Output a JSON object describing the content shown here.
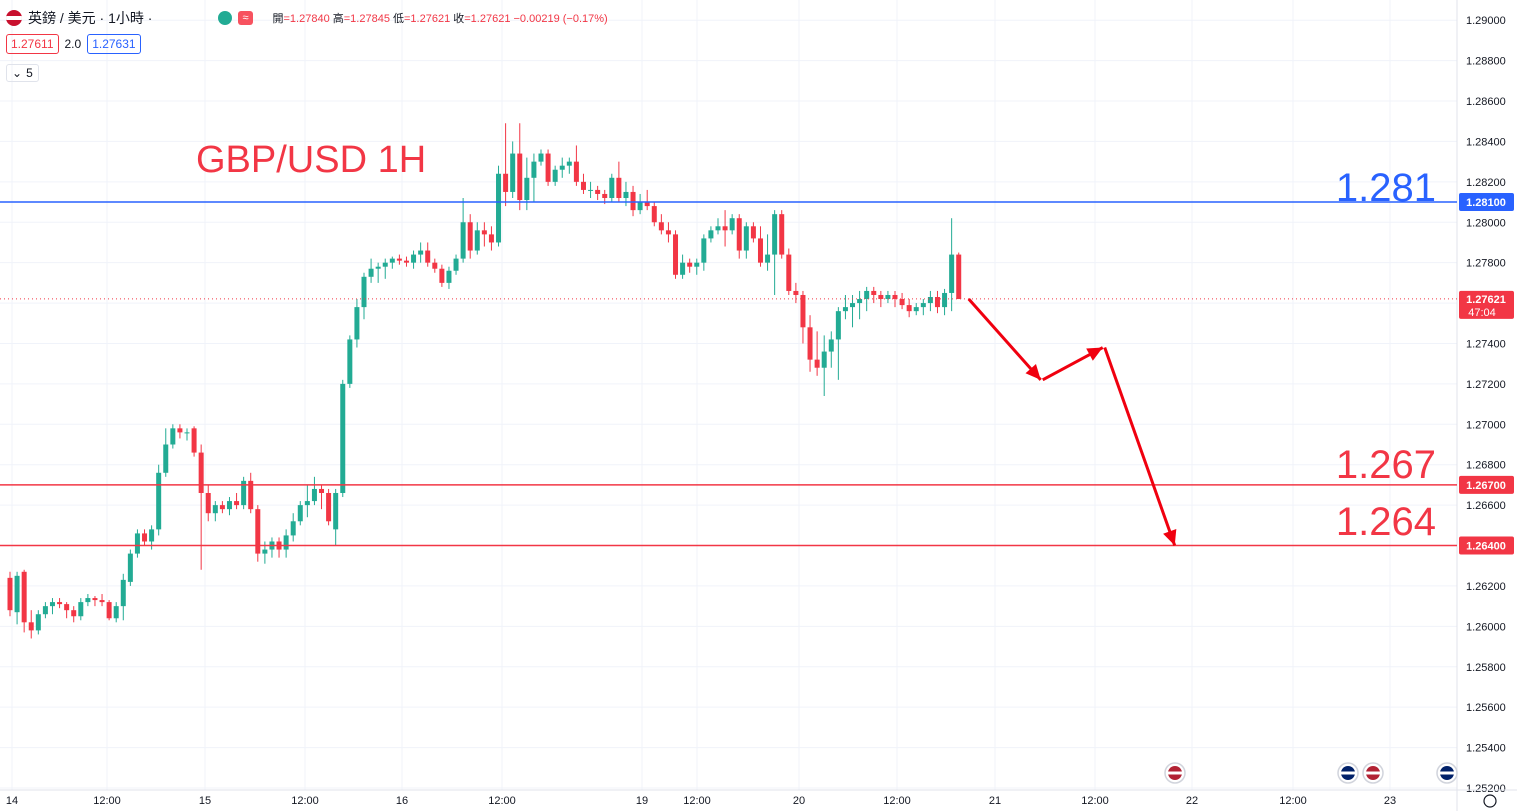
{
  "header": {
    "symbol": "英鎊 / 美元 · 1小時 ·",
    "ohlc_line": [
      {
        "label": "開",
        "value": "=1.27840"
      },
      {
        "label": "高",
        "value": "=1.27845"
      },
      {
        "label": "低",
        "value": "=1.27621"
      },
      {
        "label": "收",
        "value": "=1.27621"
      },
      {
        "label": "",
        "value": "−0.00219 (−0.17%)"
      }
    ],
    "badge": "≈",
    "sell_price": "1.27611",
    "spread": "2.0",
    "buy_price": "1.27631",
    "indicator_toggle": "5"
  },
  "annotations": {
    "title": "GBP/USD 1H",
    "level_high": "1.281",
    "level_mid": "1.267",
    "level_low": "1.264"
  },
  "colors": {
    "up": "#22ab94",
    "down": "#f23645",
    "resistance": "#2962ff",
    "support": "#f23645",
    "grid": "#f0f3fa"
  },
  "chart_data": {
    "type": "candlestick",
    "title": "GBP/USD 1H",
    "y_axis": {
      "range": [
        1.2519,
        1.291
      ],
      "ticks": [
        "1.29000",
        "1.28800",
        "1.28600",
        "1.28400",
        "1.28200",
        "1.28000",
        "1.27800",
        "1.27600",
        "1.27400",
        "1.27200",
        "1.27000",
        "1.26800",
        "1.26600",
        "1.26400",
        "1.26200",
        "1.26000",
        "1.25800",
        "1.25600",
        "1.25400",
        "1.25200"
      ]
    },
    "x_axis": {
      "ticks": [
        "14",
        "12:00",
        "15",
        "12:00",
        "16",
        "12:00",
        "19",
        "12:00",
        "20",
        "12:00",
        "21",
        "12:00",
        "22",
        "12:00",
        "23"
      ]
    },
    "horizontal_levels": [
      {
        "value": 1.281,
        "label": "1.28100",
        "color": "#2962ff"
      },
      {
        "value": 1.267,
        "label": "1.26700",
        "color": "#f23645"
      },
      {
        "value": 1.264,
        "label": "1.26400",
        "color": "#f23645"
      }
    ],
    "last_price": {
      "value": 1.27621,
      "label": "1.27621",
      "countdown": "47:04"
    },
    "projection_path": [
      {
        "bar": 0,
        "value": 1.2762
      },
      {
        "bar": 10,
        "value": 1.2722
      },
      {
        "bar": 10,
        "value": 1.2738
      },
      {
        "bar": 18,
        "value": 1.264
      }
    ],
    "candles": [
      [
        1.2624,
        1.2627,
        1.2605,
        1.2608
      ],
      [
        1.2607,
        1.2627,
        1.2601,
        1.2625
      ],
      [
        1.2627,
        1.2628,
        1.2597,
        1.2602
      ],
      [
        1.2602,
        1.2608,
        1.2594,
        1.2598
      ],
      [
        1.2598,
        1.2608,
        1.2596,
        1.2606
      ],
      [
        1.2606,
        1.2612,
        1.2604,
        1.261
      ],
      [
        1.261,
        1.2614,
        1.2606,
        1.2612
      ],
      [
        1.2612,
        1.2614,
        1.2609,
        1.2611
      ],
      [
        1.2611,
        1.2612,
        1.2604,
        1.2608
      ],
      [
        1.2608,
        1.261,
        1.2602,
        1.2605
      ],
      [
        1.2605,
        1.2614,
        1.2603,
        1.2612
      ],
      [
        1.2612,
        1.2616,
        1.261,
        1.2614
      ],
      [
        1.2614,
        1.2615,
        1.261,
        1.2613
      ],
      [
        1.2613,
        1.2616,
        1.261,
        1.2612
      ],
      [
        1.2612,
        1.2613,
        1.2603,
        1.2604
      ],
      [
        1.2604,
        1.2612,
        1.2602,
        1.261
      ],
      [
        1.261,
        1.2626,
        1.2603,
        1.2623
      ],
      [
        1.2622,
        1.2638,
        1.262,
        1.2636
      ],
      [
        1.2636,
        1.2648,
        1.2634,
        1.2646
      ],
      [
        1.2646,
        1.2648,
        1.264,
        1.2642
      ],
      [
        1.2642,
        1.265,
        1.2638,
        1.2648
      ],
      [
        1.2648,
        1.268,
        1.2645,
        1.2676
      ],
      [
        1.2676,
        1.2698,
        1.2674,
        1.269
      ],
      [
        1.269,
        1.27,
        1.2688,
        1.2698
      ],
      [
        1.2698,
        1.27,
        1.2693,
        1.2696
      ],
      [
        1.2696,
        1.2698,
        1.2692,
        1.2696
      ],
      [
        1.2698,
        1.2699,
        1.2684,
        1.2686
      ],
      [
        1.2686,
        1.269,
        1.2628,
        1.2666
      ],
      [
        1.2666,
        1.267,
        1.2652,
        1.2656
      ],
      [
        1.2656,
        1.2662,
        1.2652,
        1.266
      ],
      [
        1.266,
        1.2662,
        1.2656,
        1.2658
      ],
      [
        1.2658,
        1.2664,
        1.2655,
        1.2662
      ],
      [
        1.2662,
        1.2666,
        1.2658,
        1.266
      ],
      [
        1.266,
        1.2674,
        1.2658,
        1.2672
      ],
      [
        1.2672,
        1.2676,
        1.2656,
        1.2658
      ],
      [
        1.2658,
        1.266,
        1.2632,
        1.2636
      ],
      [
        1.2636,
        1.2642,
        1.2631,
        1.2638
      ],
      [
        1.2638,
        1.2644,
        1.2634,
        1.2642
      ],
      [
        1.2642,
        1.2644,
        1.2634,
        1.2638
      ],
      [
        1.2638,
        1.2648,
        1.2634,
        1.2645
      ],
      [
        1.2645,
        1.2656,
        1.2642,
        1.2652
      ],
      [
        1.2652,
        1.2662,
        1.265,
        1.266
      ],
      [
        1.266,
        1.267,
        1.2654,
        1.2662
      ],
      [
        1.2662,
        1.2674,
        1.266,
        1.2668
      ],
      [
        1.2668,
        1.267,
        1.2658,
        1.2666
      ],
      [
        1.2666,
        1.2668,
        1.265,
        1.2652
      ],
      [
        1.2648,
        1.2668,
        1.264,
        1.2666
      ],
      [
        1.2666,
        1.2722,
        1.2664,
        1.272
      ],
      [
        1.272,
        1.2744,
        1.2718,
        1.2742
      ],
      [
        1.2742,
        1.2762,
        1.2738,
        1.2758
      ],
      [
        1.2758,
        1.2775,
        1.2752,
        1.2773
      ],
      [
        1.2773,
        1.2782,
        1.277,
        1.2777
      ],
      [
        1.2777,
        1.278,
        1.277,
        1.2778
      ],
      [
        1.2778,
        1.2782,
        1.2772,
        1.278
      ],
      [
        1.278,
        1.2783,
        1.2777,
        1.2782
      ],
      [
        1.2782,
        1.2784,
        1.2779,
        1.2781
      ],
      [
        1.2781,
        1.2783,
        1.2778,
        1.278
      ],
      [
        1.278,
        1.2786,
        1.2777,
        1.2784
      ],
      [
        1.2784,
        1.279,
        1.278,
        1.2786
      ],
      [
        1.2786,
        1.279,
        1.2778,
        1.278
      ],
      [
        1.278,
        1.2782,
        1.2775,
        1.2777
      ],
      [
        1.2777,
        1.2779,
        1.2768,
        1.277
      ],
      [
        1.277,
        1.2778,
        1.2767,
        1.2776
      ],
      [
        1.2776,
        1.2784,
        1.2774,
        1.2782
      ],
      [
        1.2782,
        1.2812,
        1.278,
        1.28
      ],
      [
        1.28,
        1.2804,
        1.2782,
        1.2786
      ],
      [
        1.2786,
        1.28,
        1.2784,
        1.2796
      ],
      [
        1.2796,
        1.28,
        1.2788,
        1.2794
      ],
      [
        1.2794,
        1.2798,
        1.2786,
        1.279
      ],
      [
        1.279,
        1.2828,
        1.2788,
        1.2824
      ],
      [
        1.2824,
        1.2849,
        1.2808,
        1.2815
      ],
      [
        1.2815,
        1.284,
        1.2812,
        1.2834
      ],
      [
        1.2834,
        1.2849,
        1.2806,
        1.2811
      ],
      [
        1.2811,
        1.2832,
        1.2806,
        1.2822
      ],
      [
        1.2822,
        1.2834,
        1.281,
        1.283
      ],
      [
        1.283,
        1.2836,
        1.2828,
        1.2834
      ],
      [
        1.2834,
        1.2836,
        1.2818,
        1.282
      ],
      [
        1.282,
        1.2828,
        1.2818,
        1.2826
      ],
      [
        1.2826,
        1.2832,
        1.2822,
        1.2828
      ],
      [
        1.2828,
        1.2832,
        1.2824,
        1.283
      ],
      [
        1.283,
        1.2838,
        1.2818,
        1.282
      ],
      [
        1.282,
        1.2824,
        1.2814,
        1.2816
      ],
      [
        1.2816,
        1.282,
        1.2812,
        1.2816
      ],
      [
        1.2816,
        1.2818,
        1.2811,
        1.2814
      ],
      [
        1.2814,
        1.2816,
        1.2809,
        1.2812
      ],
      [
        1.2812,
        1.2824,
        1.281,
        1.2822
      ],
      [
        1.2822,
        1.283,
        1.281,
        1.2812
      ],
      [
        1.2812,
        1.282,
        1.2808,
        1.2815
      ],
      [
        1.2815,
        1.2818,
        1.2803,
        1.2806
      ],
      [
        1.2806,
        1.2814,
        1.2804,
        1.281
      ],
      [
        1.281,
        1.2816,
        1.2806,
        1.2808
      ],
      [
        1.2808,
        1.281,
        1.2798,
        1.28
      ],
      [
        1.28,
        1.2804,
        1.2794,
        1.2796
      ],
      [
        1.2796,
        1.28,
        1.279,
        1.2794
      ],
      [
        1.2794,
        1.2796,
        1.2772,
        1.2774
      ],
      [
        1.2774,
        1.2784,
        1.2772,
        1.278
      ],
      [
        1.278,
        1.2782,
        1.2775,
        1.2778
      ],
      [
        1.2778,
        1.2782,
        1.2774,
        1.278
      ],
      [
        1.278,
        1.2794,
        1.2776,
        1.2792
      ],
      [
        1.2792,
        1.2798,
        1.279,
        1.2796
      ],
      [
        1.2796,
        1.2802,
        1.2794,
        1.2798
      ],
      [
        1.2798,
        1.2806,
        1.2788,
        1.2796
      ],
      [
        1.2796,
        1.2804,
        1.2794,
        1.2802
      ],
      [
        1.2802,
        1.2804,
        1.2782,
        1.2786
      ],
      [
        1.2786,
        1.28,
        1.2782,
        1.2798
      ],
      [
        1.2798,
        1.28,
        1.279,
        1.2792
      ],
      [
        1.2792,
        1.2798,
        1.2778,
        1.278
      ],
      [
        1.278,
        1.2794,
        1.2776,
        1.2784
      ],
      [
        1.2784,
        1.2806,
        1.2764,
        1.2804
      ],
      [
        1.2804,
        1.2806,
        1.2782,
        1.2784
      ],
      [
        1.2784,
        1.2787,
        1.2764,
        1.2766
      ],
      [
        1.2766,
        1.277,
        1.276,
        1.2764
      ],
      [
        1.2764,
        1.2766,
        1.274,
        1.2748
      ],
      [
        1.2748,
        1.2754,
        1.2726,
        1.2732
      ],
      [
        1.2732,
        1.2746,
        1.2724,
        1.2728
      ],
      [
        1.2728,
        1.2744,
        1.2714,
        1.2736
      ],
      [
        1.2736,
        1.2746,
        1.2728,
        1.2742
      ],
      [
        1.2742,
        1.2758,
        1.2722,
        1.2756
      ],
      [
        1.2756,
        1.2764,
        1.2752,
        1.2758
      ],
      [
        1.2758,
        1.2764,
        1.2748,
        1.276
      ],
      [
        1.276,
        1.2766,
        1.2752,
        1.2762
      ],
      [
        1.2762,
        1.2768,
        1.2756,
        1.2766
      ],
      [
        1.2766,
        1.2768,
        1.276,
        1.2764
      ],
      [
        1.2764,
        1.2766,
        1.2758,
        1.2762
      ],
      [
        1.2762,
        1.2766,
        1.276,
        1.2764
      ],
      [
        1.2764,
        1.2766,
        1.2758,
        1.2762
      ],
      [
        1.2762,
        1.2765,
        1.2757,
        1.2759
      ],
      [
        1.2759,
        1.2762,
        1.2753,
        1.2756
      ],
      [
        1.2756,
        1.276,
        1.2754,
        1.2758
      ],
      [
        1.2758,
        1.2762,
        1.2754,
        1.276
      ],
      [
        1.276,
        1.2766,
        1.2756,
        1.2763
      ],
      [
        1.2763,
        1.2766,
        1.2755,
        1.2758
      ],
      [
        1.2758,
        1.2767,
        1.2754,
        1.2765
      ],
      [
        1.2765,
        1.2802,
        1.2756,
        1.2784
      ],
      [
        1.2784,
        1.2785,
        1.2762,
        1.2762
      ]
    ]
  }
}
